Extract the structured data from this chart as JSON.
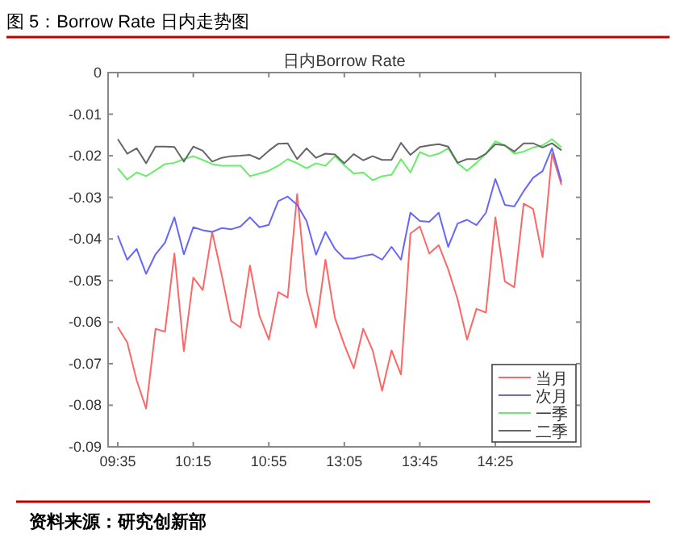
{
  "chart_data": {
    "type": "line",
    "title": "图 5：Borrow Rate 日内走势图",
    "subtitle": "日内Borrow Rate",
    "annotations": [
      "资料来源：研究创新部"
    ],
    "categories": [
      "09:35",
      null,
      null,
      null,
      null,
      null,
      null,
      null,
      "10:15",
      null,
      null,
      null,
      null,
      null,
      null,
      null,
      "10:55",
      null,
      null,
      null,
      null,
      null,
      null,
      null,
      "13:05",
      null,
      null,
      null,
      null,
      null,
      null,
      null,
      "13:45",
      null,
      null,
      null,
      null,
      null,
      null,
      null,
      "14:25",
      null,
      null,
      null,
      null,
      null,
      null,
      null
    ],
    "series": [
      {
        "name": "当月",
        "color": "#ff6666",
        "values": [
          -0.0612,
          -0.0649,
          -0.074,
          -0.0808,
          -0.0616,
          -0.0623,
          -0.0435,
          -0.067,
          -0.0493,
          -0.0523,
          -0.0383,
          -0.0486,
          -0.0597,
          -0.0613,
          -0.0464,
          -0.0584,
          -0.0642,
          -0.0528,
          -0.0541,
          -0.0292,
          -0.0525,
          -0.0613,
          -0.045,
          -0.059,
          -0.0655,
          -0.0711,
          -0.0616,
          -0.0668,
          -0.0765,
          -0.0668,
          -0.0726,
          -0.0387,
          -0.037,
          -0.0435,
          -0.0415,
          -0.0473,
          -0.0545,
          -0.0642,
          -0.0568,
          -0.0577,
          -0.0348,
          -0.0502,
          -0.0516,
          -0.0315,
          -0.0328,
          -0.0444,
          -0.0195,
          -0.027
        ]
      },
      {
        "name": "次月",
        "color": "#6666ff",
        "values": [
          -0.0392,
          -0.045,
          -0.0424,
          -0.0484,
          -0.0437,
          -0.0409,
          -0.0348,
          -0.0437,
          -0.0372,
          -0.0379,
          -0.0383,
          -0.0374,
          -0.0377,
          -0.037,
          -0.0348,
          -0.0372,
          -0.0366,
          -0.0309,
          -0.0298,
          -0.0318,
          -0.0357,
          -0.0438,
          -0.0383,
          -0.0424,
          -0.0447,
          -0.0447,
          -0.0441,
          -0.0437,
          -0.045,
          -0.0419,
          -0.045,
          -0.0337,
          -0.0357,
          -0.0359,
          -0.0337,
          -0.0419,
          -0.0363,
          -0.0354,
          -0.0367,
          -0.0337,
          -0.0256,
          -0.0318,
          -0.0322,
          -0.0285,
          -0.0253,
          -0.0237,
          -0.0182,
          -0.0263
        ]
      },
      {
        "name": "一季",
        "color": "#66ee66",
        "values": [
          -0.023,
          -0.0257,
          -0.024,
          -0.0249,
          -0.0235,
          -0.022,
          -0.0217,
          -0.0208,
          -0.0201,
          -0.021,
          -0.022,
          -0.0224,
          -0.0224,
          -0.0224,
          -0.0249,
          -0.0243,
          -0.0236,
          -0.0224,
          -0.0208,
          -0.0218,
          -0.023,
          -0.0218,
          -0.0224,
          -0.0201,
          -0.0223,
          -0.0243,
          -0.024,
          -0.0259,
          -0.0249,
          -0.0246,
          -0.0208,
          -0.024,
          -0.0191,
          -0.0201,
          -0.0195,
          -0.0182,
          -0.0218,
          -0.0236,
          -0.0217,
          -0.0195,
          -0.0165,
          -0.0175,
          -0.0195,
          -0.019,
          -0.018,
          -0.0175,
          -0.016,
          -0.018
        ]
      },
      {
        "name": "二季",
        "color": "#666666",
        "values": [
          -0.016,
          -0.0195,
          -0.0182,
          -0.0218,
          -0.0178,
          -0.0178,
          -0.0179,
          -0.0214,
          -0.0178,
          -0.0188,
          -0.0214,
          -0.0205,
          -0.0201,
          -0.02,
          -0.0198,
          -0.0208,
          -0.0188,
          -0.0171,
          -0.017,
          -0.0208,
          -0.0182,
          -0.0205,
          -0.0195,
          -0.0197,
          -0.0218,
          -0.0196,
          -0.0211,
          -0.0201,
          -0.021,
          -0.021,
          -0.0169,
          -0.0198,
          -0.0179,
          -0.0175,
          -0.0172,
          -0.0178,
          -0.0217,
          -0.0208,
          -0.0208,
          -0.0195,
          -0.0172,
          -0.0175,
          -0.019,
          -0.017,
          -0.017,
          -0.018,
          -0.017,
          -0.0187
        ]
      }
    ],
    "ylim": [
      -0.09,
      0
    ],
    "yticks": [
      0,
      -0.01,
      -0.02,
      -0.03,
      -0.04,
      -0.05,
      -0.06,
      -0.07,
      -0.08,
      -0.09
    ],
    "grid": false,
    "legend": "bottom right",
    "marker": "none",
    "line_style": "solid"
  }
}
